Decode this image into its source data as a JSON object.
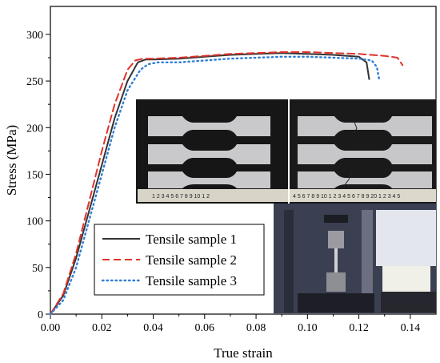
{
  "chart_data": {
    "type": "line",
    "xlabel": "True strain",
    "ylabel": "Stress (MPa)",
    "xlim": [
      0.0,
      0.15
    ],
    "ylim": [
      0,
      330
    ],
    "xticks": [
      "0.00",
      "0.02",
      "0.04",
      "0.06",
      "0.08",
      "0.10",
      "0.12",
      "0.14"
    ],
    "yticks": [
      "0",
      "50",
      "100",
      "150",
      "200",
      "250",
      "300"
    ],
    "grid": false,
    "legend_position": "bottom-left",
    "series": [
      {
        "name": "Tensile sample 1",
        "color": "#333333",
        "style": "solid",
        "x": [
          0.0,
          0.005,
          0.01,
          0.015,
          0.02,
          0.025,
          0.03,
          0.034,
          0.037,
          0.04,
          0.05,
          0.06,
          0.07,
          0.08,
          0.09,
          0.1,
          0.11,
          0.12,
          0.123,
          0.124
        ],
        "y": [
          0,
          20,
          60,
          110,
          160,
          210,
          250,
          270,
          273,
          273,
          274,
          276,
          278,
          279,
          280,
          279,
          278,
          276,
          270,
          252
        ]
      },
      {
        "name": "Tensile sample 2",
        "color": "#e0332c",
        "style": "dashed",
        "x": [
          0.0,
          0.005,
          0.01,
          0.015,
          0.02,
          0.025,
          0.03,
          0.033,
          0.036,
          0.04,
          0.05,
          0.06,
          0.07,
          0.08,
          0.09,
          0.1,
          0.11,
          0.12,
          0.13,
          0.135,
          0.137
        ],
        "y": [
          0,
          22,
          65,
          120,
          175,
          225,
          262,
          272,
          274,
          274,
          275,
          277,
          279,
          280,
          281,
          281,
          280,
          279,
          277,
          275,
          267
        ]
      },
      {
        "name": "Tensile sample 3",
        "color": "#2f7fd6",
        "style": "dotted",
        "x": [
          0.0,
          0.005,
          0.01,
          0.015,
          0.02,
          0.025,
          0.03,
          0.035,
          0.038,
          0.042,
          0.05,
          0.06,
          0.07,
          0.08,
          0.09,
          0.1,
          0.11,
          0.12,
          0.125,
          0.127,
          0.128
        ],
        "y": [
          0,
          15,
          50,
          100,
          150,
          200,
          240,
          262,
          268,
          270,
          270,
          272,
          274,
          275,
          276,
          276,
          275,
          274,
          272,
          265,
          250
        ]
      }
    ]
  },
  "inset": {
    "ruler_left": "1 2 3 4 5 6 7 8 9 10 1 2",
    "ruler_right": "4 5 6 7 8 9 10 1 2 3 4 5 6 7 8 9 20 1 2 3 4 5"
  }
}
